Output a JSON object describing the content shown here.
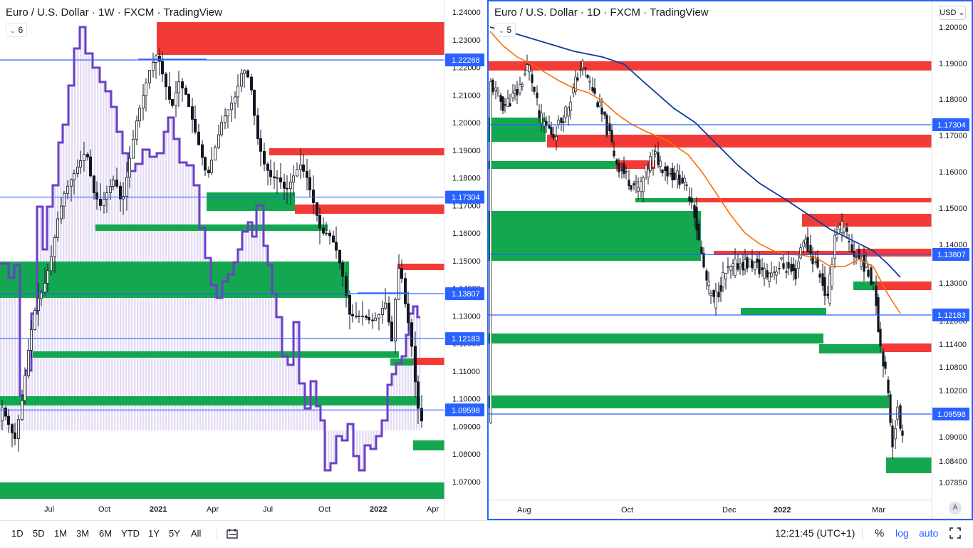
{
  "left_chart": {
    "title": "Euro / U.S. Dollar · 1W · FXCM · TradingView",
    "indicator_count": "6",
    "price_labels": [
      "1.24000",
      "1.23000",
      "1.22000",
      "1.21000",
      "1.20000",
      "1.19000",
      "1.18000",
      "1.17000",
      "1.16000",
      "1.15000",
      "1.14000",
      "1.13000",
      "1.12000",
      "1.11000",
      "1.10000",
      "1.09000",
      "1.08000",
      "1.07000"
    ],
    "price_values": [
      1.24,
      1.23,
      1.22,
      1.21,
      1.2,
      1.19,
      1.18,
      1.17,
      1.16,
      1.15,
      1.14,
      1.13,
      1.12,
      1.11,
      1.1,
      1.09,
      1.08,
      1.07
    ],
    "highlight_levels": [
      {
        "label": "1.22268",
        "value": 1.22268
      },
      {
        "label": "1.17304",
        "value": 1.17304
      },
      {
        "label": "1.13807",
        "value": 1.13807
      },
      {
        "label": "1.12183",
        "value": 1.12183
      },
      {
        "label": "1.09598",
        "value": 1.09598
      }
    ],
    "time_labels": [
      "Jul",
      "Oct",
      "2021",
      "Apr",
      "Jul",
      "Oct",
      "2022",
      "Apr"
    ]
  },
  "right_chart": {
    "title": "Euro / U.S. Dollar · 1D · FXCM · TradingView",
    "indicator_count": "5",
    "currency": "USD",
    "price_labels": [
      "1.20000",
      "1.19000",
      "1.18000",
      "1.17000",
      "1.16000",
      "1.15000",
      "1.14000",
      "1.13000",
      "1.12000",
      "1.11400",
      "1.10800",
      "1.10200",
      "1.09000",
      "1.08400",
      "1.07850"
    ],
    "price_values": [
      1.2,
      1.19,
      1.18,
      1.17,
      1.16,
      1.15,
      1.14,
      1.13,
      1.12,
      1.114,
      1.108,
      1.102,
      1.09,
      1.084,
      1.0785
    ],
    "highlight_levels": [
      {
        "label": "1.17304",
        "value": 1.17304
      },
      {
        "label": "1.13807",
        "value": 1.13807
      },
      {
        "label": "1.12183",
        "value": 1.12183
      },
      {
        "label": "1.09598",
        "value": 1.09598
      }
    ],
    "time_labels": [
      "Aug",
      "Oct",
      "Dec",
      "2022",
      "Mar"
    ],
    "scale_mode": "A"
  },
  "toolbar": {
    "ranges": [
      "1D",
      "5D",
      "1M",
      "3M",
      "6M",
      "YTD",
      "1Y",
      "5Y",
      "All"
    ],
    "clock": "12:21:45 (UTC+1)",
    "percent": "%",
    "log": "log",
    "auto": "auto"
  },
  "colors": {
    "supply_zone": "#f23b37",
    "demand_zone": "#13a84f",
    "level_line": "#2962ff",
    "level_label_bg": "#2962ff",
    "oscillator": "#6b3fc8",
    "sma_short": "#ff6d00",
    "sma_long": "#0d3a9c"
  }
}
